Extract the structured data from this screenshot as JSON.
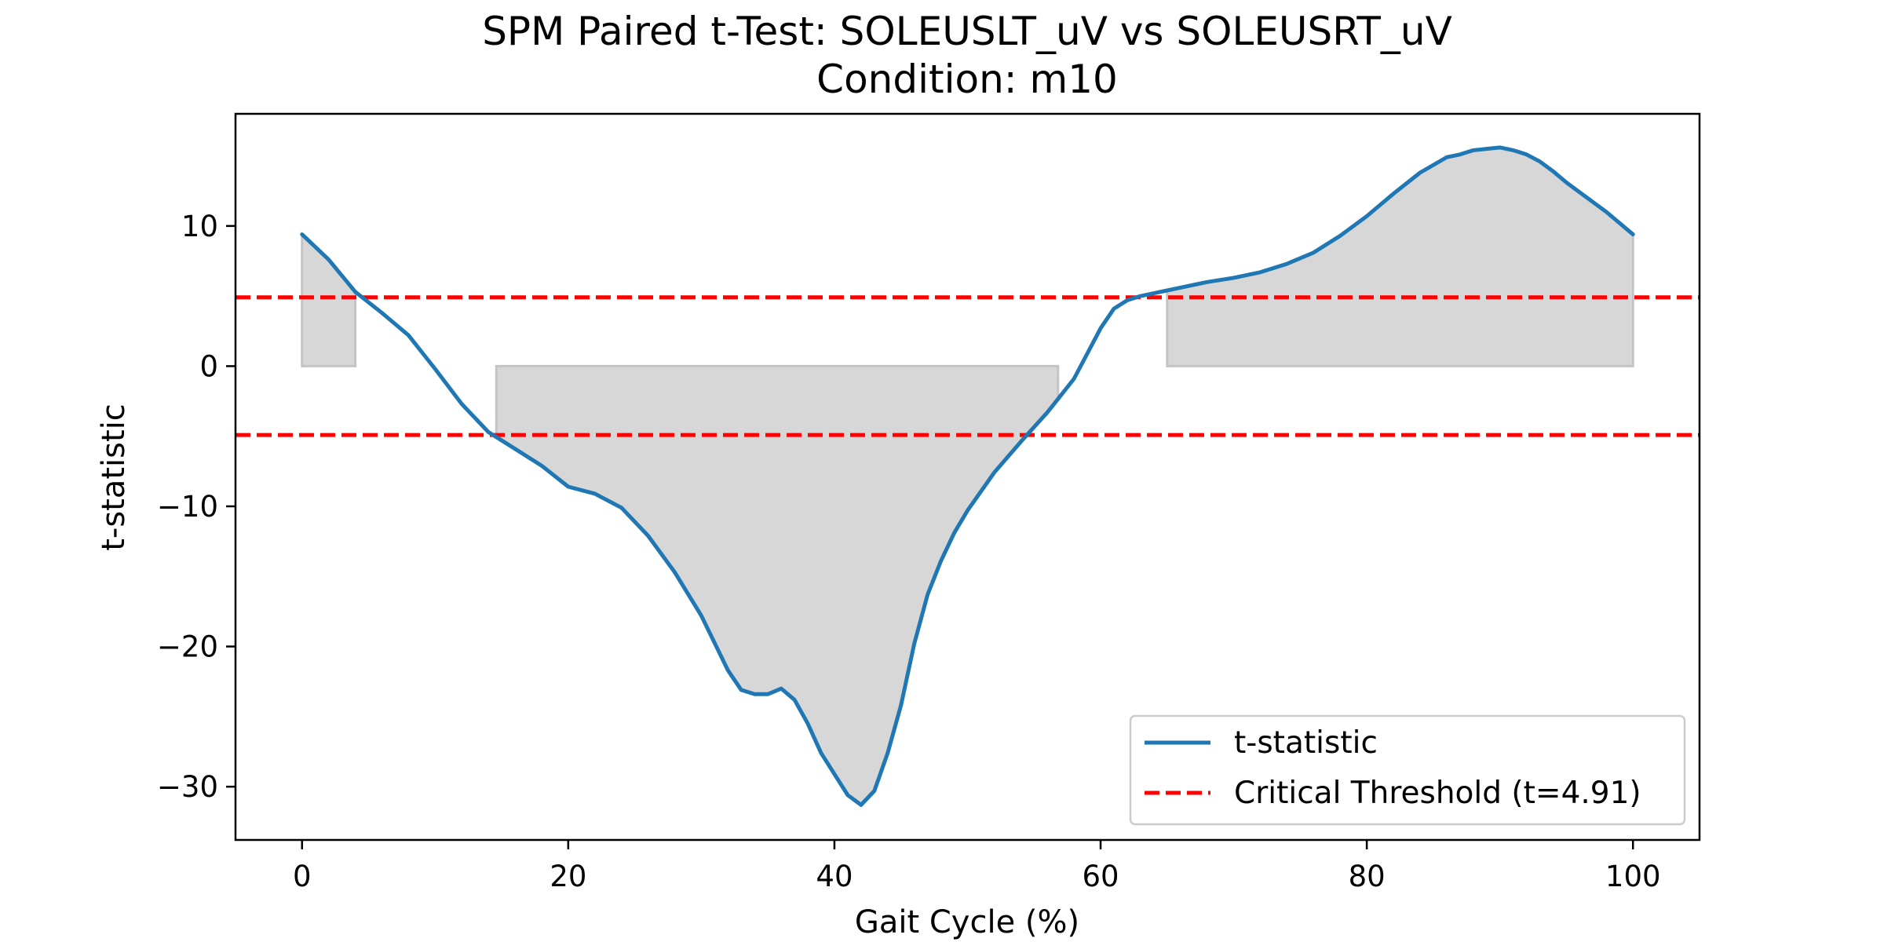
{
  "chart_data": {
    "type": "line",
    "title": "SPM Paired t-Test: SOLEUSLT_uV vs SOLEUSRT_uV",
    "subtitle": "Condition: m10",
    "xlabel": "Gait Cycle (%)",
    "ylabel": "t-statistic",
    "xlim": [
      -5,
      105
    ],
    "ylim": [
      -33.8,
      18.0
    ],
    "xticks": [
      0,
      20,
      40,
      60,
      80,
      100
    ],
    "xtick_labels": [
      "0",
      "20",
      "40",
      "60",
      "80",
      "100"
    ],
    "yticks": [
      -30,
      -20,
      -10,
      0,
      10
    ],
    "ytick_labels": [
      "−30",
      "−20",
      "−10",
      "0",
      "10"
    ],
    "grid": false,
    "legend_position": "lower-right",
    "critical_threshold": 4.91,
    "series": [
      {
        "name": "t-statistic",
        "color": "#1f77b4",
        "x": [
          0,
          2,
          4,
          6,
          8,
          10,
          12,
          14,
          16,
          18,
          20,
          22,
          24,
          26,
          28,
          30,
          32,
          33,
          34,
          35,
          36,
          37,
          38,
          39,
          40,
          41,
          42,
          43,
          44,
          45,
          46,
          47,
          48,
          49,
          50,
          52,
          54,
          56,
          58,
          60,
          61,
          62,
          63,
          64,
          65,
          66,
          68,
          70,
          72,
          74,
          76,
          78,
          80,
          82,
          84,
          86,
          87,
          88,
          89,
          90,
          91,
          92,
          93,
          94,
          95,
          96,
          98,
          100
        ],
        "y": [
          9.4,
          7.6,
          5.3,
          3.8,
          2.2,
          -0.2,
          -2.7,
          -4.7,
          -5.9,
          -7.1,
          -8.6,
          -9.1,
          -10.1,
          -12.1,
          -14.7,
          -17.8,
          -21.7,
          -23.1,
          -23.4,
          -23.4,
          -23.0,
          -23.8,
          -25.5,
          -27.6,
          -29.1,
          -30.6,
          -31.3,
          -30.3,
          -27.6,
          -24.2,
          -19.8,
          -16.3,
          -13.9,
          -11.9,
          -10.3,
          -7.6,
          -5.4,
          -3.3,
          -0.9,
          2.7,
          4.1,
          4.7,
          5.0,
          5.2,
          5.4,
          5.6,
          6.0,
          6.3,
          6.7,
          7.3,
          8.1,
          9.3,
          10.7,
          12.3,
          13.8,
          14.9,
          15.1,
          15.4,
          15.5,
          15.6,
          15.4,
          15.1,
          14.6,
          13.9,
          13.1,
          12.4,
          11.0,
          9.4
        ]
      },
      {
        "name": "Critical Threshold (t=4.91)",
        "color": "#ff0000",
        "style": "dashed",
        "y_values": [
          4.91,
          -4.91
        ]
      }
    ],
    "shaded_clusters": [
      {
        "start": 0,
        "end": 4,
        "sign": "positive"
      },
      {
        "start": 14.6,
        "end": 56.8,
        "sign": "negative"
      },
      {
        "start": 65,
        "end": 100,
        "sign": "positive"
      }
    ],
    "shade_color": "#d7d7d7",
    "shade_edge_color": "#c4c4c4"
  }
}
